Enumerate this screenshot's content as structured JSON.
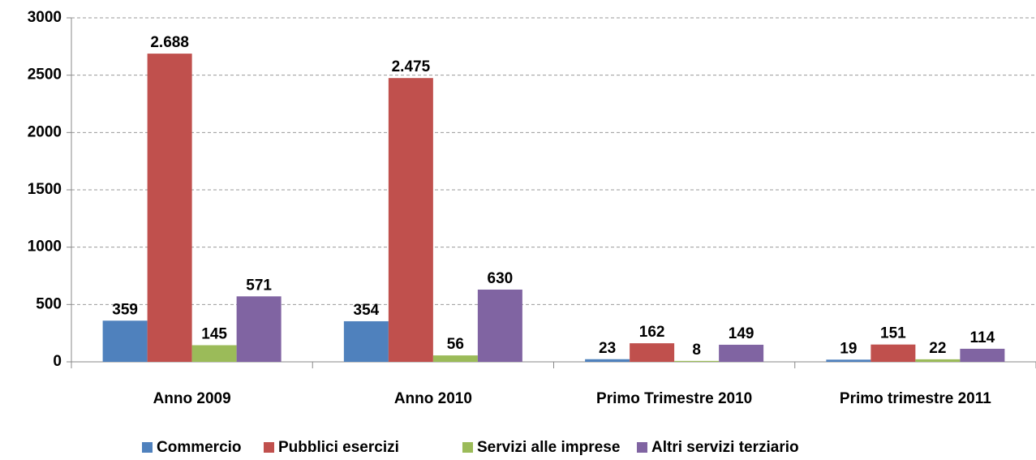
{
  "chart_data": {
    "type": "bar",
    "categories": [
      "Anno 2009",
      "Anno 2010",
      "Primo Trimestre 2010",
      "Primo trimestre 2011"
    ],
    "series": [
      {
        "name": "Commercio",
        "color": "#4f81bd",
        "values": [
          359,
          354,
          23,
          19
        ]
      },
      {
        "name": "Pubblici esercizi",
        "color": "#c0504d",
        "values": [
          2688,
          2475,
          162,
          151
        ],
        "value_labels": [
          "2.688",
          "2.475",
          "162",
          "151"
        ]
      },
      {
        "name": "Servizi alle imprese",
        "color": "#9bbb59",
        "values": [
          145,
          56,
          8,
          22
        ]
      },
      {
        "name": "Altri servizi terziario",
        "color": "#8064a2",
        "values": [
          571,
          630,
          149,
          114
        ]
      }
    ],
    "ylim": [
      0,
      3000
    ],
    "yticks": [
      0,
      500,
      1000,
      1500,
      2000,
      2500,
      3000
    ],
    "grid": true,
    "legend": "bottom"
  }
}
